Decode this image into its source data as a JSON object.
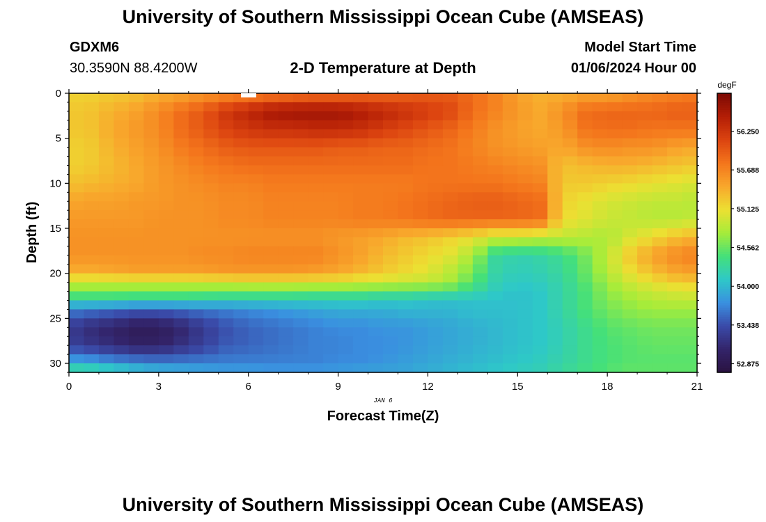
{
  "header": {
    "title": "University of Southern Mississippi Ocean Cube (AMSEAS)",
    "station": "GDXM6",
    "coords": "30.3590N  88.4200W",
    "subtitle": "2-D Temperature at Depth",
    "model_start_label": "Model Start Time",
    "model_start_value": "01/06/2024 Hour 00"
  },
  "footer": {
    "title": "University of Southern Mississippi Ocean Cube (AMSEAS)"
  },
  "chart_data": {
    "type": "heatmap",
    "title": "2-D Temperature at Depth",
    "xlabel": "Forecast Time(Z)",
    "ylabel": "Depth (ft)",
    "date_label": "JAN 6",
    "xlim": [
      0,
      21
    ],
    "ylim": [
      0,
      31
    ],
    "x_ticks": [
      0,
      3,
      6,
      9,
      12,
      15,
      18,
      21
    ],
    "y_ticks": [
      0,
      5,
      10,
      15,
      20,
      25,
      30
    ],
    "colorbar": {
      "unit": "degF",
      "ticks": [
        "56.250",
        "55.688",
        "55.125",
        "54.562",
        "54.000",
        "53.438",
        "52.875"
      ],
      "tick_values": [
        56.25,
        55.688,
        55.125,
        54.562,
        54.0,
        53.438,
        52.875
      ],
      "range": [
        52.75,
        56.8
      ],
      "colors": [
        "#2a1240",
        "#33246a",
        "#3a4aa8",
        "#3a8fe0",
        "#2ec8c8",
        "#44e07a",
        "#a6ec3a",
        "#ece032",
        "#f8a82c",
        "#f4761c",
        "#dc4410",
        "#b41e06",
        "#7c0a04"
      ]
    },
    "sample_times": [
      0,
      0.75,
      1.5,
      2.25,
      3,
      3.75,
      4.5,
      5.25,
      6,
      6.75,
      7.5,
      8.25,
      9,
      9.75,
      10.5,
      11.25,
      12,
      12.75,
      13.5,
      14.25,
      15,
      15.75,
      16.5,
      17.25,
      18,
      18.75,
      19.5,
      20.25,
      21
    ],
    "sample_depths": [
      0,
      2,
      4,
      6,
      8,
      10,
      12,
      14,
      16,
      18,
      20,
      21,
      22,
      23,
      24,
      26,
      28,
      30,
      31
    ],
    "temperature_degF": [
      [
        55.2,
        55.2,
        55.25,
        55.3,
        55.4,
        55.45,
        55.55,
        55.6,
        55.65,
        55.7,
        55.75,
        55.8,
        55.8,
        55.85,
        55.85,
        55.9,
        55.95,
        55.95,
        55.85,
        55.7,
        55.5,
        55.4,
        55.4,
        55.45,
        55.45,
        55.55,
        55.65,
        55.7,
        55.75
      ],
      [
        55.25,
        55.3,
        55.4,
        55.5,
        55.65,
        55.85,
        56.0,
        56.25,
        56.4,
        56.55,
        56.6,
        56.6,
        56.6,
        56.5,
        56.4,
        56.3,
        56.2,
        56.1,
        55.85,
        55.7,
        55.55,
        55.45,
        55.6,
        55.85,
        55.9,
        55.9,
        55.9,
        55.95,
        55.95
      ],
      [
        55.25,
        55.3,
        55.45,
        55.55,
        55.65,
        55.85,
        56.0,
        56.15,
        56.25,
        56.3,
        56.3,
        56.35,
        56.35,
        56.3,
        56.2,
        56.1,
        56.0,
        55.9,
        55.75,
        55.6,
        55.5,
        55.45,
        55.55,
        55.8,
        55.85,
        55.85,
        55.8,
        55.8,
        55.8
      ],
      [
        55.2,
        55.25,
        55.4,
        55.5,
        55.6,
        55.75,
        55.85,
        55.95,
        56.0,
        56.0,
        56.0,
        56.0,
        55.95,
        55.95,
        55.9,
        55.9,
        55.85,
        55.8,
        55.7,
        55.6,
        55.55,
        55.5,
        55.45,
        55.6,
        55.65,
        55.6,
        55.6,
        55.5,
        55.45
      ],
      [
        55.2,
        55.25,
        55.35,
        55.45,
        55.55,
        55.65,
        55.75,
        55.8,
        55.85,
        55.85,
        55.85,
        55.85,
        55.85,
        55.85,
        55.85,
        55.85,
        55.8,
        55.8,
        55.75,
        55.7,
        55.65,
        55.6,
        55.3,
        55.35,
        55.4,
        55.4,
        55.35,
        55.3,
        55.25
      ],
      [
        55.3,
        55.35,
        55.4,
        55.45,
        55.55,
        55.6,
        55.65,
        55.7,
        55.7,
        55.75,
        55.75,
        55.75,
        55.75,
        55.75,
        55.75,
        55.75,
        55.8,
        55.8,
        55.8,
        55.8,
        55.75,
        55.7,
        55.25,
        55.25,
        55.2,
        55.15,
        55.1,
        55.05,
        55.0
      ],
      [
        55.45,
        55.5,
        55.5,
        55.55,
        55.55,
        55.6,
        55.6,
        55.65,
        55.65,
        55.7,
        55.7,
        55.7,
        55.7,
        55.75,
        55.75,
        55.8,
        55.85,
        55.9,
        55.95,
        55.95,
        55.9,
        55.85,
        55.2,
        55.1,
        55.0,
        54.95,
        54.9,
        54.9,
        54.85
      ],
      [
        55.55,
        55.55,
        55.55,
        55.55,
        55.6,
        55.6,
        55.6,
        55.65,
        55.65,
        55.7,
        55.7,
        55.7,
        55.7,
        55.75,
        55.75,
        55.8,
        55.85,
        55.9,
        55.9,
        55.9,
        55.9,
        55.85,
        55.15,
        55.05,
        54.95,
        54.9,
        54.85,
        54.85,
        54.9
      ],
      [
        55.6,
        55.6,
        55.6,
        55.6,
        55.6,
        55.6,
        55.6,
        55.6,
        55.6,
        55.6,
        55.6,
        55.6,
        55.55,
        55.5,
        55.45,
        55.35,
        55.3,
        55.2,
        55.1,
        54.95,
        54.95,
        54.9,
        54.9,
        54.85,
        54.8,
        55.0,
        55.15,
        55.3,
        55.4
      ],
      [
        55.6,
        55.6,
        55.6,
        55.6,
        55.6,
        55.6,
        55.65,
        55.65,
        55.7,
        55.7,
        55.7,
        55.7,
        55.6,
        55.5,
        55.35,
        55.25,
        55.15,
        55.05,
        54.8,
        54.3,
        54.2,
        54.25,
        54.35,
        54.6,
        54.9,
        55.25,
        55.5,
        55.65,
        55.75
      ],
      [
        55.4,
        55.4,
        55.45,
        55.5,
        55.5,
        55.5,
        55.5,
        55.55,
        55.55,
        55.55,
        55.55,
        55.5,
        55.45,
        55.35,
        55.25,
        55.15,
        55.05,
        54.85,
        54.6,
        54.25,
        54.15,
        54.2,
        54.3,
        54.55,
        54.85,
        55.1,
        55.3,
        55.45,
        55.5
      ],
      [
        54.9,
        54.9,
        54.9,
        54.9,
        54.9,
        54.9,
        54.95,
        54.95,
        55.0,
        55.0,
        55.0,
        55.0,
        55.0,
        54.95,
        54.95,
        54.9,
        54.9,
        54.8,
        54.5,
        54.2,
        54.1,
        54.15,
        54.25,
        54.5,
        54.75,
        54.95,
        55.1,
        55.2,
        55.25
      ],
      [
        54.65,
        54.65,
        54.65,
        54.65,
        54.65,
        54.65,
        54.6,
        54.6,
        54.6,
        54.6,
        54.6,
        54.55,
        54.55,
        54.55,
        54.5,
        54.5,
        54.45,
        54.4,
        54.3,
        54.15,
        54.05,
        54.1,
        54.25,
        54.45,
        54.7,
        54.85,
        54.95,
        55.0,
        55.05
      ],
      [
        54.25,
        54.25,
        54.25,
        54.2,
        54.2,
        54.2,
        54.2,
        54.15,
        54.15,
        54.15,
        54.15,
        54.15,
        54.15,
        54.15,
        54.1,
        54.1,
        54.05,
        54.05,
        54.05,
        54.05,
        54.05,
        54.1,
        54.25,
        54.45,
        54.65,
        54.75,
        54.85,
        54.9,
        54.9
      ],
      [
        53.7,
        53.65,
        53.6,
        53.55,
        53.55,
        53.6,
        53.65,
        53.7,
        53.75,
        53.8,
        53.85,
        53.9,
        53.95,
        53.95,
        53.95,
        54.0,
        54.0,
        54.0,
        54.05,
        54.05,
        54.05,
        54.1,
        54.25,
        54.45,
        54.6,
        54.7,
        54.75,
        54.75,
        54.75
      ],
      [
        53.3,
        53.15,
        53.05,
        52.95,
        52.95,
        53.1,
        53.3,
        53.45,
        53.55,
        53.6,
        53.65,
        53.7,
        53.75,
        53.75,
        53.8,
        53.8,
        53.85,
        53.9,
        53.95,
        54.0,
        54.05,
        54.1,
        54.2,
        54.35,
        54.5,
        54.55,
        54.6,
        54.6,
        54.6
      ],
      [
        53.35,
        53.25,
        53.15,
        53.05,
        53.05,
        53.2,
        53.35,
        53.5,
        53.55,
        53.6,
        53.65,
        53.7,
        53.7,
        53.75,
        53.75,
        53.8,
        53.85,
        53.9,
        53.95,
        54.0,
        54.05,
        54.1,
        54.2,
        54.35,
        54.45,
        54.5,
        54.55,
        54.55,
        54.55
      ],
      [
        53.95,
        53.9,
        53.8,
        53.75,
        53.7,
        53.7,
        53.7,
        53.7,
        53.7,
        53.7,
        53.7,
        53.7,
        53.75,
        53.75,
        53.8,
        53.85,
        53.9,
        53.95,
        54.0,
        54.05,
        54.1,
        54.15,
        54.25,
        54.35,
        54.45,
        54.5,
        54.5,
        54.5,
        54.5
      ],
      [
        54.45,
        54.4,
        54.3,
        54.15,
        54.05,
        54.0,
        53.95,
        53.9,
        53.9,
        53.85,
        53.85,
        53.85,
        53.85,
        53.9,
        53.9,
        53.9,
        53.95,
        54.0,
        54.05,
        54.1,
        54.15,
        54.2,
        54.3,
        54.4,
        54.5,
        54.55,
        54.55,
        54.55,
        54.55
      ]
    ]
  }
}
